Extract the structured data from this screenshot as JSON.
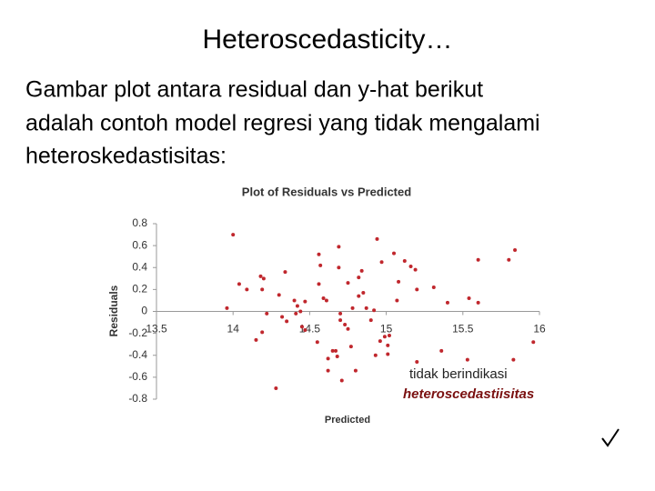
{
  "slide": {
    "title": "Heteroscedasticity…",
    "body": [
      "Gambar plot antara residual dan y-hat berikut",
      "adalah contoh model regresi yang tidak mengalami",
      "heteroskedastisitas:"
    ]
  },
  "chart_data": {
    "type": "scatter",
    "title": "Plot of Residuals vs Predicted",
    "x_label": "Predicted",
    "y_label": "Residuals",
    "color": "#c0272d",
    "xlim": [
      13.5,
      16
    ],
    "xticks": [
      13.5,
      14,
      14.5,
      15,
      15.5,
      16
    ],
    "ylim": [
      -0.8,
      0.8
    ],
    "yticks": [
      0.8,
      0.6,
      0.4,
      0.2,
      0,
      -0.2,
      -0.4,
      -0.6,
      -0.8
    ],
    "x": [
      14.0,
      13.96,
      14.04,
      14.09,
      14.18,
      14.2,
      14.19,
      14.22,
      14.15,
      14.19,
      14.28,
      14.34,
      14.3,
      14.32,
      14.35,
      14.4,
      14.42,
      14.44,
      14.41,
      14.47,
      14.45,
      14.47,
      14.55,
      14.56,
      14.56,
      14.57,
      14.59,
      14.62,
      14.62,
      14.65,
      14.67,
      14.68,
      14.69,
      14.69,
      14.7,
      14.7,
      14.71,
      14.73,
      14.75,
      14.75,
      14.77,
      14.78,
      14.8,
      14.82,
      14.82,
      14.84,
      14.85,
      14.87,
      14.9,
      14.92,
      14.93,
      14.94,
      14.96,
      14.97,
      14.99,
      15.01,
      15.02,
      15.01,
      15.05,
      15.07,
      15.08,
      15.12,
      15.16,
      15.19,
      15.2,
      15.31,
      15.36,
      15.4,
      15.53,
      15.54,
      15.6,
      15.6,
      15.8,
      15.84,
      15.83,
      15.96,
      15.2,
      14.61
    ],
    "values": [
      0.7,
      0.03,
      0.25,
      0.2,
      0.32,
      0.3,
      0.2,
      -0.02,
      -0.26,
      -0.19,
      -0.7,
      0.36,
      0.15,
      -0.05,
      -0.09,
      0.1,
      0.05,
      0.0,
      -0.02,
      0.09,
      -0.14,
      -0.17,
      -0.28,
      0.25,
      0.52,
      0.42,
      0.12,
      -0.43,
      -0.54,
      -0.36,
      -0.36,
      -0.41,
      0.59,
      0.4,
      -0.02,
      -0.08,
      -0.63,
      -0.12,
      -0.16,
      0.26,
      -0.32,
      0.03,
      -0.54,
      0.31,
      0.14,
      0.37,
      0.17,
      0.03,
      -0.08,
      0.01,
      -0.4,
      0.66,
      -0.27,
      0.45,
      -0.23,
      -0.31,
      -0.22,
      -0.39,
      0.53,
      0.1,
      0.27,
      0.46,
      0.41,
      0.38,
      0.2,
      0.22,
      -0.36,
      0.08,
      -0.44,
      0.12,
      0.08,
      0.47,
      0.47,
      0.56,
      -0.44,
      -0.28,
      -0.46,
      0.1
    ],
    "annotations": [
      "tidak berindikasi",
      "heteroscedastiisitas"
    ]
  }
}
